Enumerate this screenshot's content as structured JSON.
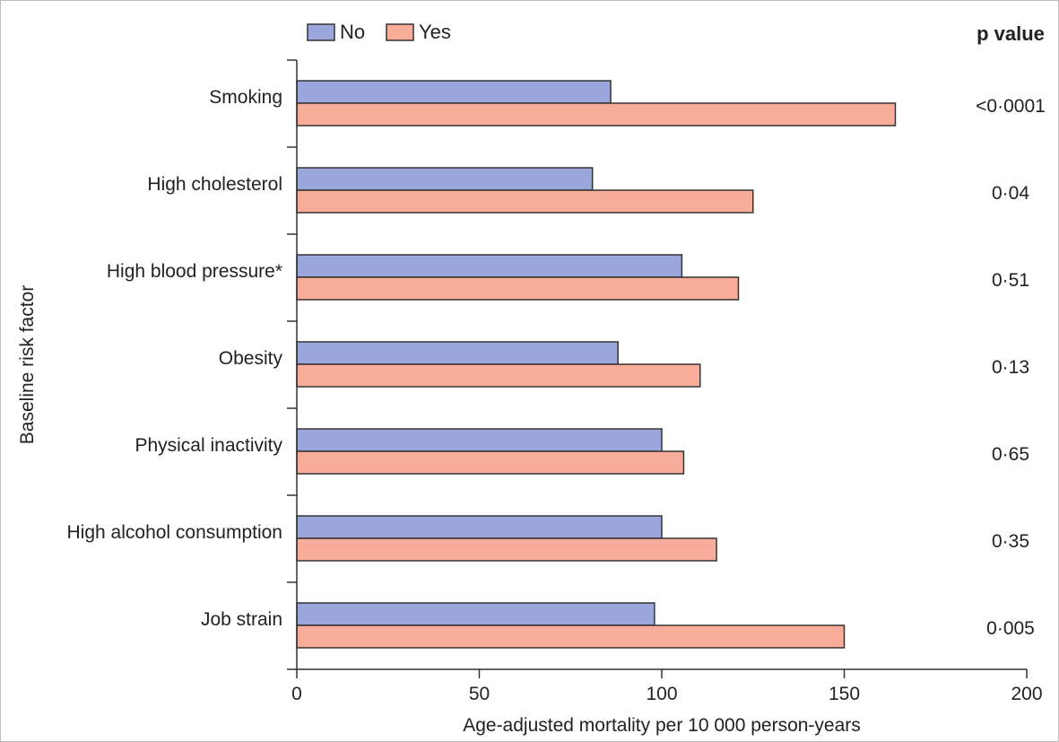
{
  "colors": {
    "no": "#9ba7dc",
    "yes": "#f7ad9a",
    "bar_stroke": "#333333",
    "axis": "#333333",
    "text": "#222222"
  },
  "chart_data": {
    "type": "bar",
    "orientation": "horizontal",
    "categories": [
      "Smoking",
      "High cholesterol",
      "High blood pressure*",
      "Obesity",
      "Physical inactivity",
      "High alcohol consumption",
      "Job strain"
    ],
    "series": [
      {
        "name": "No",
        "values": [
          86,
          81,
          105.5,
          88,
          100,
          100,
          98
        ]
      },
      {
        "name": "Yes",
        "values": [
          164,
          125,
          121,
          110.5,
          106,
          115,
          150
        ]
      }
    ],
    "p_values": [
      "<0·0001",
      "0·04",
      "0·51",
      "0·13",
      "0·65",
      "0·35",
      "0·005"
    ],
    "p_value_header": "p value",
    "xlabel": "Age-adjusted mortality per 10 000 person-years",
    "ylabel": "Baseline risk factor",
    "xlim": [
      0,
      200
    ],
    "xticks": [
      0,
      50,
      100,
      150,
      200
    ],
    "legend_position": "top-left",
    "grid": false
  }
}
